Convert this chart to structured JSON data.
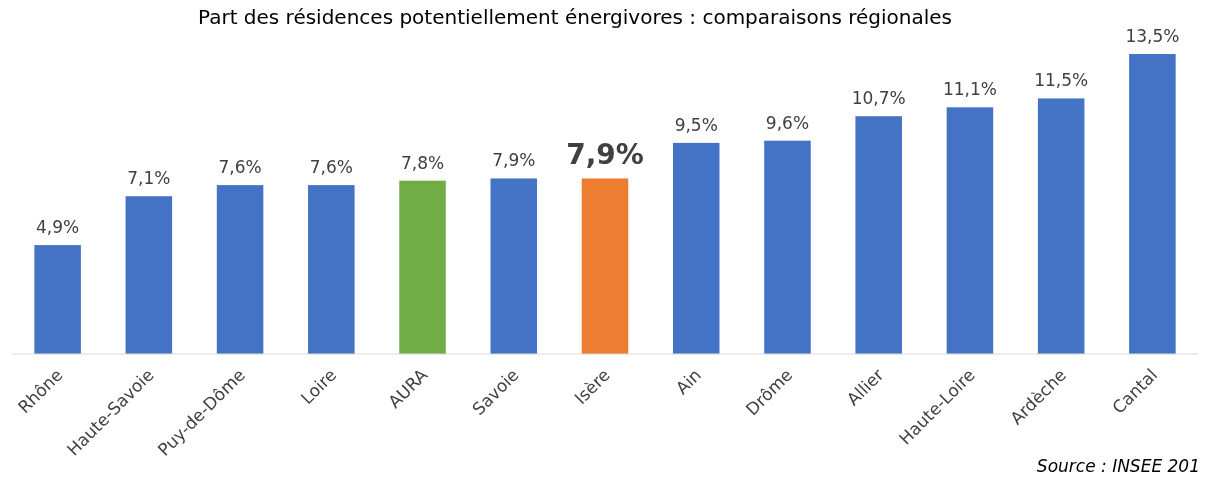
{
  "chart_data": {
    "type": "bar",
    "title": "Part des résidences potentiellement énergivores : comparaisons régionales",
    "categories": [
      "Rhône",
      "Haute-Savoie",
      "Puy-de-Dôme",
      "Loire",
      "AURA",
      "Savoie",
      "Isère",
      "Ain",
      "Drôme",
      "Allier",
      "Haute-Loire",
      "Ardèche",
      "Cantal"
    ],
    "values": [
      4.9,
      7.1,
      7.6,
      7.6,
      7.8,
      7.9,
      7.9,
      9.5,
      9.6,
      10.7,
      11.1,
      11.5,
      13.5
    ],
    "colors": [
      "#4472c4",
      "#4472c4",
      "#4472c4",
      "#4472c4",
      "#70ad47",
      "#4472c4",
      "#ed7d31",
      "#4472c4",
      "#4472c4",
      "#4472c4",
      "#4472c4",
      "#4472c4",
      "#4472c4"
    ],
    "value_labels": [
      "4,9%",
      "7,1%",
      "7,6%",
      "7,6%",
      "7,8%",
      "7,9%",
      "7,9%",
      "9,5%",
      "9,6%",
      "10,7%",
      "11,1%",
      "11,5%",
      "13,5%"
    ],
    "annotations": [
      "Source : INSEE 201"
    ]
  }
}
